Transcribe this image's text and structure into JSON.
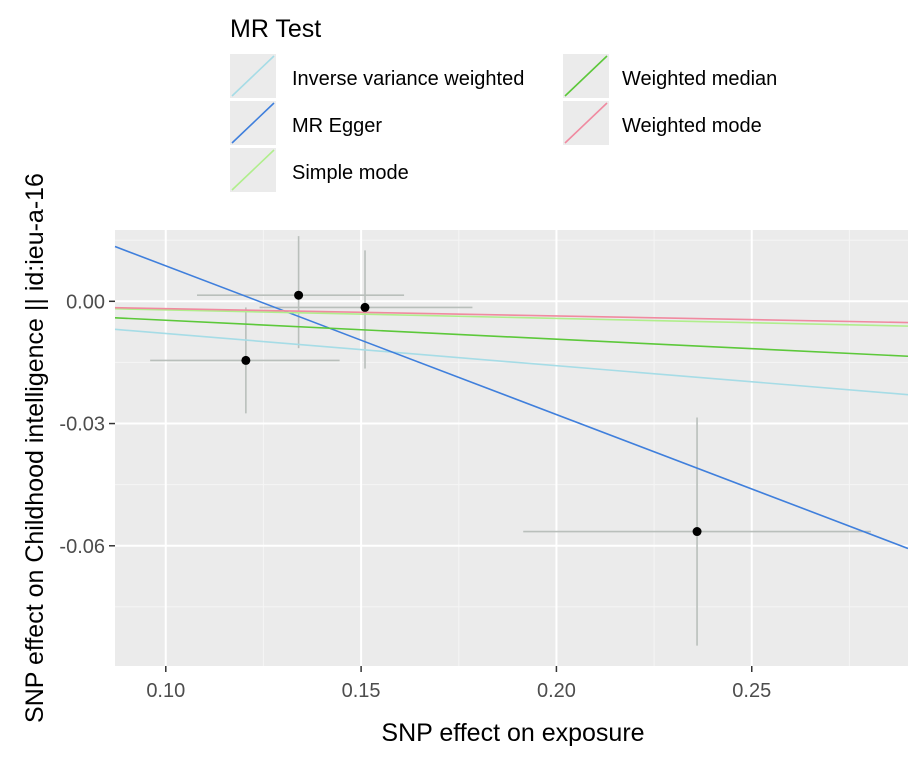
{
  "chart_data": {
    "type": "scatter",
    "xlabel": "SNP effect on exposure",
    "ylabel": "SNP effect on Childhood intelligence || id:ieu-a-16",
    "xlim": [
      0.087,
      0.29
    ],
    "ylim": [
      -0.0895,
      0.0175
    ],
    "xticks": [
      0.1,
      0.15,
      0.2,
      0.25
    ],
    "xtick_labels": [
      "0.10",
      "0.15",
      "0.20",
      "0.25"
    ],
    "yticks": [
      0.0,
      -0.03,
      -0.06
    ],
    "ytick_labels": [
      "0.00",
      "-0.03",
      "-0.06"
    ],
    "grid": true,
    "legend": {
      "title": "MR Test",
      "placement": "top",
      "entries": [
        {
          "label": "Inverse variance weighted",
          "color": "#a6dce6"
        },
        {
          "label": "MR Egger",
          "color": "#3f7fdc"
        },
        {
          "label": "Simple mode",
          "color": "#b0ee8c"
        },
        {
          "label": "Weighted median",
          "color": "#5cc83a"
        },
        {
          "label": "Weighted mode",
          "color": "#f08aa0"
        }
      ]
    },
    "points": [
      {
        "x": 0.1205,
        "y": -0.0145,
        "x_low": 0.096,
        "x_high": 0.1445,
        "y_low": -0.0275,
        "y_high": -0.0015
      },
      {
        "x": 0.134,
        "y": 0.0015,
        "x_low": 0.108,
        "x_high": 0.161,
        "y_low": -0.0115,
        "y_high": 0.016
      },
      {
        "x": 0.151,
        "y": -0.0015,
        "x_low": 0.124,
        "x_high": 0.1785,
        "y_low": -0.0165,
        "y_high": 0.0125
      },
      {
        "x": 0.236,
        "y": -0.0565,
        "x_low": 0.1915,
        "x_high": 0.2805,
        "y_low": -0.0845,
        "y_high": -0.0285
      }
    ],
    "lines": [
      {
        "name": "Inverse variance weighted",
        "color": "#a6dce6",
        "intercept": 0,
        "slope": -0.079
      },
      {
        "name": "MR Egger",
        "color": "#3f7fdc",
        "intercept": 0.0452,
        "slope": -0.365
      },
      {
        "name": "Simple mode",
        "color": "#b0ee8c",
        "intercept": 0,
        "slope": -0.021
      },
      {
        "name": "Weighted median",
        "color": "#5cc83a",
        "intercept": 0,
        "slope": -0.0465
      },
      {
        "name": "Weighted mode",
        "color": "#f08aa0",
        "intercept": 0,
        "slope": -0.018
      }
    ],
    "colors": {
      "panel": "#ebebeb",
      "grid_major": "#ffffff",
      "grid_minor": "#f5f5f5",
      "errorbar": "#b9bfbb",
      "point": "#000000",
      "tick_text": "#4d4d4d"
    }
  }
}
